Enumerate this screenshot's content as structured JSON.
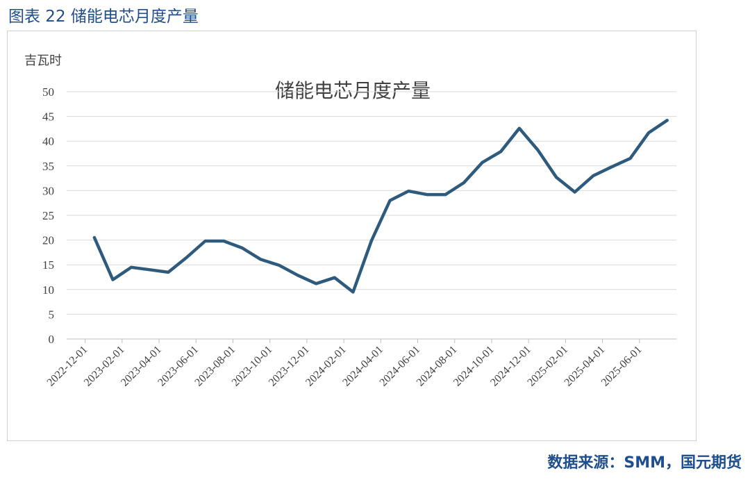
{
  "figure": {
    "caption": "图表 22 储能电芯月度产量",
    "source": "数据来源：SMM，国元期货"
  },
  "chart_data": {
    "type": "line",
    "title": "储能电芯月度产量",
    "ylabel": "吉瓦时",
    "xlabel": "",
    "ylim": [
      0,
      50
    ],
    "yticks": [
      0,
      5,
      10,
      15,
      20,
      25,
      30,
      35,
      40,
      45,
      50
    ],
    "grid": true,
    "x_tick_labels": [
      "2022-12-01",
      "2023-02-01",
      "2023-04-01",
      "2023-06-01",
      "2023-08-01",
      "2023-10-01",
      "2023-12-01",
      "2024-02-01",
      "2024-04-01",
      "2024-06-01",
      "2024-08-01",
      "2024-10-01",
      "2024-12-01",
      "2025-02-01",
      "2025-04-01",
      "2025-06-01"
    ],
    "x": [
      "2023-01",
      "2023-02",
      "2023-03",
      "2023-04",
      "2023-05",
      "2023-06",
      "2023-07",
      "2023-08",
      "2023-09",
      "2023-10",
      "2023-11",
      "2023-12",
      "2024-01",
      "2024-02",
      "2024-03",
      "2024-04",
      "2024-05",
      "2024-06",
      "2024-07",
      "2024-08",
      "2024-09",
      "2024-10",
      "2024-11",
      "2024-12",
      "2025-01",
      "2025-02",
      "2025-03",
      "2025-04",
      "2025-05",
      "2025-06",
      "2025-07",
      "2025-08"
    ],
    "series": [
      {
        "color": "#2e5b7d",
        "values": [
          20.5,
          12.0,
          14.5,
          14.0,
          13.5,
          16.5,
          19.8,
          19.8,
          18.4,
          16.1,
          14.9,
          12.9,
          11.2,
          12.4,
          9.5,
          19.9,
          28.0,
          29.9,
          29.2,
          29.2,
          31.6,
          35.7,
          37.9,
          42.6,
          38.2,
          32.7,
          29.7,
          33.0,
          34.8,
          36.5,
          41.7,
          44.2
        ]
      }
    ]
  }
}
